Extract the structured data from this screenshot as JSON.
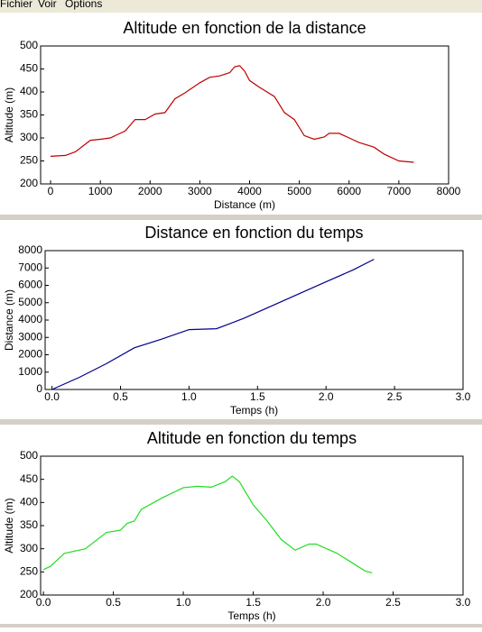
{
  "menu": [
    "Fichier",
    "Voir",
    "Options"
  ],
  "chart_data": [
    {
      "type": "line",
      "title": "Altitude en fonction de la distance",
      "xlabel": "Distance (m)",
      "ylabel": "Altitude (m)",
      "color": "#c00000",
      "x": [
        0,
        300,
        500,
        800,
        1000,
        1200,
        1500,
        1700,
        1900,
        2100,
        2300,
        2500,
        2700,
        3000,
        3200,
        3400,
        3600,
        3700,
        3800,
        3900,
        4000,
        4200,
        4500,
        4700,
        4900,
        5100,
        5300,
        5500,
        5600,
        5800,
        6000,
        6200,
        6500,
        6700,
        7000,
        7300
      ],
      "values": [
        260,
        262,
        270,
        295,
        297,
        300,
        315,
        340,
        340,
        352,
        355,
        385,
        398,
        420,
        432,
        435,
        442,
        455,
        457,
        445,
        425,
        410,
        390,
        355,
        340,
        305,
        297,
        302,
        310,
        310,
        300,
        290,
        280,
        265,
        250,
        247
      ],
      "xlim": [
        -200,
        8000
      ],
      "xticks": [
        0,
        1000,
        2000,
        3000,
        4000,
        5000,
        6000,
        7000,
        8000
      ],
      "ylim": [
        200,
        500
      ],
      "yticks": [
        200,
        250,
        300,
        350,
        400,
        450,
        500
      ]
    },
    {
      "type": "line",
      "title": "Distance en fonction du temps",
      "xlabel": "Temps (h)",
      "ylabel": "Distance (m)",
      "color": "#00008b",
      "x": [
        0,
        0.2,
        0.4,
        0.6,
        0.8,
        1.0,
        1.2,
        1.4,
        1.6,
        1.8,
        2.0,
        2.2,
        2.35
      ],
      "values": [
        0,
        700,
        1500,
        2400,
        2900,
        3450,
        3500,
        4100,
        4800,
        5500,
        6200,
        6900,
        7500
      ],
      "xlim": [
        -0.05,
        3.0
      ],
      "xticks": [
        {
          "value": 0,
          "label": "0.0"
        },
        0.5,
        {
          "value": 1,
          "label": "1.0"
        },
        1.5,
        {
          "value": 2,
          "label": "2.0"
        },
        2.5,
        {
          "value": 3,
          "label": "3.0"
        }
      ],
      "ylim": [
        0,
        8000
      ],
      "yticks": [
        0,
        1000,
        2000,
        3000,
        4000,
        5000,
        6000,
        7000,
        8000
      ]
    },
    {
      "type": "line",
      "title": "Altitude en fonction du temps",
      "xlabel": "Temps (h)",
      "ylabel": "Altitude (m)",
      "color": "#22dd22",
      "x": [
        0,
        0.05,
        0.15,
        0.3,
        0.45,
        0.55,
        0.6,
        0.65,
        0.7,
        0.85,
        1.0,
        1.1,
        1.2,
        1.3,
        1.35,
        1.4,
        1.5,
        1.6,
        1.7,
        1.8,
        1.9,
        1.95,
        2.1,
        2.3,
        2.35
      ],
      "values": [
        255,
        262,
        290,
        300,
        335,
        340,
        355,
        360,
        385,
        410,
        432,
        435,
        433,
        445,
        457,
        445,
        395,
        360,
        320,
        297,
        310,
        310,
        290,
        252,
        248
      ],
      "xlim": [
        -0.02,
        3.0
      ],
      "xticks": [
        {
          "value": 0,
          "label": "0.0"
        },
        0.5,
        {
          "value": 1,
          "label": "1.0"
        },
        1.5,
        {
          "value": 2,
          "label": "2.0"
        },
        2.5,
        {
          "value": 3,
          "label": "3.0"
        }
      ],
      "ylim": [
        200,
        500
      ],
      "yticks": [
        200,
        250,
        300,
        350,
        400,
        450,
        500
      ]
    }
  ]
}
